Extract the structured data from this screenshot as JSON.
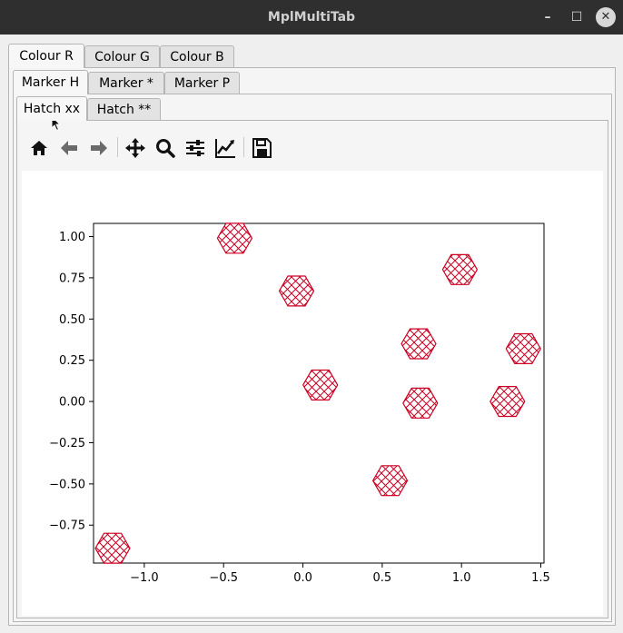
{
  "window": {
    "title": "MplMultiTab",
    "minimize_glyph": "–",
    "maximize_glyph": "☐",
    "close_glyph": "✕"
  },
  "colour_tabs": [
    "Colour R",
    "Colour G",
    "Colour B"
  ],
  "marker_tabs": [
    "Marker H",
    "Marker *",
    "Marker P"
  ],
  "hatch_tabs": [
    "Hatch xx",
    "Hatch **"
  ],
  "active": {
    "colour": 0,
    "marker": 0,
    "hatch": 0
  },
  "toolbar": {
    "icons": [
      "home-icon",
      "back-arrow-icon",
      "forward-arrow-icon",
      "pan-icon",
      "zoom-icon",
      "configure-subplots-icon",
      "edit-axes-icon",
      "save-icon"
    ]
  },
  "colors": {
    "marker_edge": "#cc0022"
  },
  "chart_data": {
    "type": "scatter",
    "marker": "hexagon",
    "hatch": "xx",
    "xlim": [
      -1.32,
      1.52
    ],
    "ylim": [
      -0.98,
      1.08
    ],
    "xticks": [
      -1.0,
      -0.5,
      0.0,
      0.5,
      1.0,
      1.5
    ],
    "xtick_labels": [
      "−1.0",
      "−0.5",
      "0.0",
      "0.5",
      "1.0",
      "1.5"
    ],
    "yticks": [
      -0.75,
      -0.5,
      -0.25,
      0.0,
      0.25,
      0.5,
      0.75,
      1.0
    ],
    "ytick_labels": [
      "−0.75",
      "−0.50",
      "−0.25",
      "0.00",
      "0.25",
      "0.50",
      "0.75",
      "1.00"
    ],
    "points": [
      {
        "x": -0.43,
        "y": 0.99
      },
      {
        "x": -0.04,
        "y": 0.67
      },
      {
        "x": 0.11,
        "y": 0.1
      },
      {
        "x": 0.55,
        "y": -0.48
      },
      {
        "x": 0.73,
        "y": 0.35
      },
      {
        "x": 0.74,
        "y": -0.01
      },
      {
        "x": 0.99,
        "y": 0.8
      },
      {
        "x": 1.29,
        "y": 0.0
      },
      {
        "x": 1.39,
        "y": 0.32
      },
      {
        "x": -1.2,
        "y": -0.89
      }
    ],
    "grid": false
  }
}
